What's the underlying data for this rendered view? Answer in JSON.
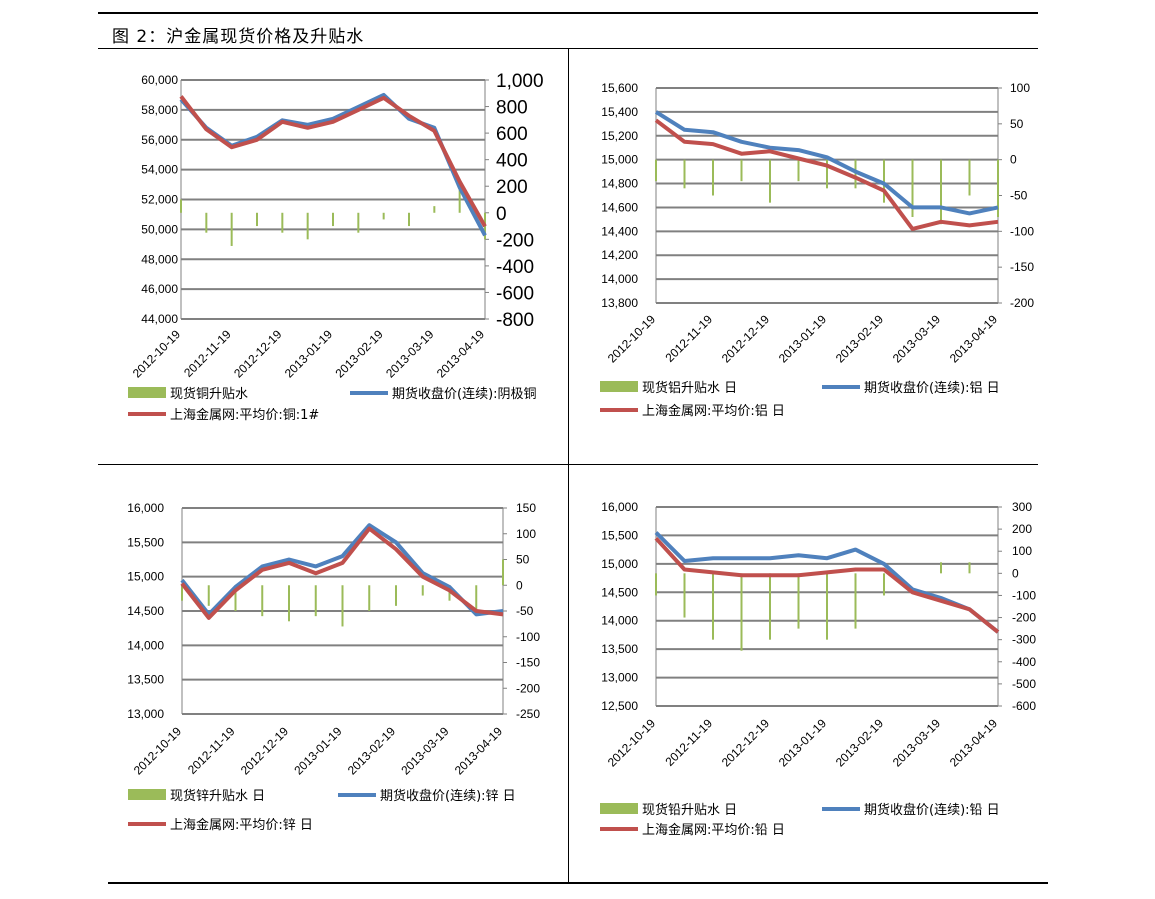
{
  "figure": {
    "title": "图 2：沪金属现货价格及升贴水"
  },
  "colors": {
    "basis": "#9bbb59",
    "futures": "#4f81bd",
    "spot": "#c0504d",
    "grid": "#808080"
  },
  "chart_data": [
    {
      "metal": "copper",
      "type": "line",
      "x_ticks": [
        "2012-10-19",
        "2012-11-19",
        "2012-12-19",
        "2013-01-19",
        "2013-02-19",
        "2013-03-19",
        "2013-04-19"
      ],
      "y_left": {
        "ticks": [
          "60,000",
          "58,000",
          "56,000",
          "54,000",
          "52,000",
          "50,000",
          "48,000",
          "46,000",
          "44,000"
        ],
        "min": 44000,
        "max": 60000
      },
      "y_right": {
        "ticks": [
          "1,000",
          "800",
          "600",
          "400",
          "200",
          "0",
          "-200",
          "-400",
          "-600",
          "-800"
        ],
        "min": -800,
        "max": 1000
      },
      "legend": [
        {
          "label": "现货铜升贴水",
          "kind": "bar"
        },
        {
          "label": "期货收盘价(连续):阴极铜",
          "kind": "line"
        },
        {
          "label": "上海金属网:平均价:铜:1#",
          "kind": "line"
        }
      ],
      "x": [
        0,
        0.5,
        1,
        1.5,
        2,
        2.5,
        3,
        3.5,
        4,
        4.5,
        5,
        5.5,
        6
      ],
      "futures": [
        58700,
        56800,
        55600,
        56200,
        57300,
        57000,
        57400,
        58200,
        59000,
        57400,
        56800,
        52800,
        49600
      ],
      "spot": [
        58900,
        56700,
        55500,
        56000,
        57200,
        56800,
        57200,
        58000,
        58800,
        57600,
        56600,
        53200,
        50200
      ],
      "basis": [
        100,
        -150,
        -250,
        -100,
        -150,
        -200,
        -100,
        -150,
        -50,
        -100,
        50,
        250,
        -200
      ]
    },
    {
      "metal": "aluminum",
      "type": "line",
      "x_ticks": [
        "2012-10-19",
        "2012-11-19",
        "2012-12-19",
        "2013-01-19",
        "2013-02-19",
        "2013-03-19",
        "2013-04-19"
      ],
      "y_left": {
        "ticks": [
          "15,600",
          "15,400",
          "15,200",
          "15,000",
          "14,800",
          "14,600",
          "14,400",
          "14,200",
          "14,000",
          "13,800"
        ],
        "min": 13800,
        "max": 15600
      },
      "y_right": {
        "ticks": [
          "100",
          "50",
          "0",
          "-50",
          "-100",
          "-150",
          "-200"
        ],
        "min": -200,
        "max": 100
      },
      "legend": [
        {
          "label": "现货铝升贴水 日",
          "kind": "bar"
        },
        {
          "label": "期货收盘价(连续):铝 日",
          "kind": "line"
        },
        {
          "label": "上海金属网:平均价:铝 日",
          "kind": "line"
        }
      ],
      "x": [
        0,
        0.5,
        1,
        1.5,
        2,
        2.5,
        3,
        3.5,
        4,
        4.5,
        5,
        5.5,
        6
      ],
      "futures": [
        15400,
        15250,
        15230,
        15150,
        15100,
        15080,
        15020,
        14900,
        14800,
        14600,
        14600,
        14550,
        14600
      ],
      "spot": [
        15330,
        15150,
        15130,
        15050,
        15070,
        15010,
        14950,
        14850,
        14740,
        14420,
        14480,
        14450,
        14480
      ],
      "basis": [
        -30,
        -40,
        -50,
        -30,
        -60,
        -30,
        -40,
        -40,
        -60,
        -80,
        -90,
        -50,
        -80
      ]
    },
    {
      "metal": "zinc",
      "type": "line",
      "x_ticks": [
        "2012-10-19",
        "2012-11-19",
        "2012-12-19",
        "2013-01-19",
        "2013-02-19",
        "2013-03-19",
        "2013-04-19"
      ],
      "y_left": {
        "ticks": [
          "16,000",
          "15,500",
          "15,000",
          "14,500",
          "14,000",
          "13,500",
          "13,000"
        ],
        "min": 13000,
        "max": 16000
      },
      "y_right": {
        "ticks": [
          "150",
          "100",
          "50",
          "0",
          "-50",
          "-100",
          "-150",
          "-200",
          "-250"
        ],
        "min": -250,
        "max": 150
      },
      "legend": [
        {
          "label": "现货锌升贴水 日",
          "kind": "bar"
        },
        {
          "label": "期货收盘价(连续):锌 日",
          "kind": "line"
        },
        {
          "label": "上海金属网:平均价:锌 日",
          "kind": "line"
        }
      ],
      "x": [
        0,
        0.5,
        1,
        1.5,
        2,
        2.5,
        3,
        3.5,
        4,
        4.5,
        5,
        5.5,
        6
      ],
      "futures": [
        14950,
        14450,
        14850,
        15150,
        15250,
        15150,
        15300,
        15750,
        15500,
        15050,
        14850,
        14450,
        14500
      ],
      "spot": [
        14900,
        14400,
        14800,
        15100,
        15200,
        15050,
        15200,
        15700,
        15400,
        15000,
        14800,
        14500,
        14450
      ],
      "basis": [
        -30,
        -40,
        -50,
        -60,
        -70,
        -60,
        -80,
        -50,
        -40,
        -20,
        -30,
        -50,
        50
      ]
    },
    {
      "metal": "lead",
      "type": "line",
      "x_ticks": [
        "2012-10-19",
        "2012-11-19",
        "2012-12-19",
        "2013-01-19",
        "2013-02-19",
        "2013-03-19",
        "2013-04-19"
      ],
      "y_left": {
        "ticks": [
          "16,000",
          "15,500",
          "15,000",
          "14,500",
          "14,000",
          "13,500",
          "13,000",
          "12,500"
        ],
        "min": 12500,
        "max": 16000
      },
      "y_right": {
        "ticks": [
          "300",
          "200",
          "100",
          "0",
          "-100",
          "-200",
          "-300",
          "-400",
          "-500",
          "-600"
        ],
        "min": -600,
        "max": 300
      },
      "legend": [
        {
          "label": "现货铅升贴水 日",
          "kind": "bar"
        },
        {
          "label": "期货收盘价(连续):铅 日",
          "kind": "line"
        },
        {
          "label": "上海金属网:平均价:铅 日",
          "kind": "line"
        }
      ],
      "x": [
        0,
        0.5,
        1,
        1.5,
        2,
        2.5,
        3,
        3.5,
        4,
        4.5,
        5,
        5.5,
        6
      ],
      "futures": [
        15550,
        15050,
        15100,
        15100,
        15100,
        15150,
        15100,
        15250,
        15000,
        14550,
        14400,
        14200,
        13800
      ],
      "spot": [
        15450,
        14900,
        14850,
        14800,
        14800,
        14800,
        14850,
        14900,
        14900,
        14500,
        14350,
        14200,
        13800
      ],
      "basis": [
        -100,
        -200,
        -300,
        -350,
        -300,
        -250,
        -300,
        -250,
        -100,
        0,
        50,
        50,
        0
      ]
    }
  ]
}
